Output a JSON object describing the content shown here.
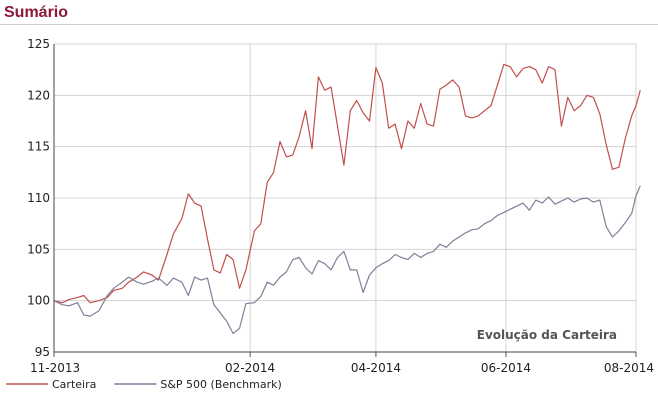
{
  "header": {
    "title": "Sumário"
  },
  "chart_data": {
    "type": "line",
    "title": "",
    "annotation": "Evolução da Carteira",
    "xlabel": "",
    "ylabel": "",
    "ylim": [
      95,
      125
    ],
    "yticks": [
      95,
      100,
      105,
      110,
      115,
      120,
      125
    ],
    "xlim": [
      "2013-11-01",
      "2014-08-01"
    ],
    "xticks": [
      {
        "date": "2013-11-01",
        "label": "11-2013"
      },
      {
        "date": "2014-02-01",
        "label": "02-2014"
      },
      {
        "date": "2014-04-01",
        "label": "04-2014"
      },
      {
        "date": "2014-06-01",
        "label": "06-2014"
      },
      {
        "date": "2014-08-01",
        "label": "08-2014"
      }
    ],
    "grid": true,
    "legend_position": "bottom-left",
    "series": [
      {
        "name": "Carteira",
        "color": "#c0504d",
        "points": [
          [
            "2013-11-01",
            100.0
          ],
          [
            "2013-11-05",
            99.8
          ],
          [
            "2013-11-08",
            100.1
          ],
          [
            "2013-11-12",
            100.3
          ],
          [
            "2013-11-15",
            100.5
          ],
          [
            "2013-11-18",
            99.8
          ],
          [
            "2013-11-22",
            100.0
          ],
          [
            "2013-11-26",
            100.3
          ],
          [
            "2013-11-29",
            101.0
          ],
          [
            "2013-12-03",
            101.2
          ],
          [
            "2013-12-06",
            101.8
          ],
          [
            "2013-12-10",
            102.3
          ],
          [
            "2013-12-13",
            102.8
          ],
          [
            "2013-12-17",
            102.5
          ],
          [
            "2013-12-20",
            102.0
          ],
          [
            "2013-12-24",
            104.5
          ],
          [
            "2013-12-27",
            106.5
          ],
          [
            "2013-12-31",
            108.0
          ],
          [
            "2014-01-03",
            110.4
          ],
          [
            "2014-01-06",
            109.5
          ],
          [
            "2014-01-09",
            109.2
          ],
          [
            "2014-01-12",
            106.0
          ],
          [
            "2014-01-15",
            103.0
          ],
          [
            "2014-01-18",
            102.7
          ],
          [
            "2014-01-21",
            104.5
          ],
          [
            "2014-01-24",
            104.0
          ],
          [
            "2014-01-27",
            101.2
          ],
          [
            "2014-01-30",
            103.0
          ],
          [
            "2014-02-03",
            106.8
          ],
          [
            "2014-02-06",
            107.5
          ],
          [
            "2014-02-09",
            111.5
          ],
          [
            "2014-02-12",
            112.5
          ],
          [
            "2014-02-15",
            115.5
          ],
          [
            "2014-02-18",
            114.0
          ],
          [
            "2014-02-21",
            114.2
          ],
          [
            "2014-02-24",
            116.0
          ],
          [
            "2014-02-27",
            118.5
          ],
          [
            "2014-03-02",
            114.8
          ],
          [
            "2014-03-05",
            121.8
          ],
          [
            "2014-03-08",
            120.5
          ],
          [
            "2014-03-11",
            120.8
          ],
          [
            "2014-03-14",
            117.0
          ],
          [
            "2014-03-17",
            113.2
          ],
          [
            "2014-03-20",
            118.5
          ],
          [
            "2014-03-23",
            119.5
          ],
          [
            "2014-03-26",
            118.3
          ],
          [
            "2014-03-29",
            117.5
          ],
          [
            "2014-04-01",
            122.7
          ],
          [
            "2014-04-04",
            121.2
          ],
          [
            "2014-04-07",
            116.8
          ],
          [
            "2014-04-10",
            117.2
          ],
          [
            "2014-04-13",
            114.8
          ],
          [
            "2014-04-16",
            117.5
          ],
          [
            "2014-04-19",
            116.8
          ],
          [
            "2014-04-22",
            119.2
          ],
          [
            "2014-04-25",
            117.2
          ],
          [
            "2014-04-28",
            117.0
          ],
          [
            "2014-05-01",
            120.6
          ],
          [
            "2014-05-04",
            121.0
          ],
          [
            "2014-05-07",
            121.5
          ],
          [
            "2014-05-10",
            120.8
          ],
          [
            "2014-05-13",
            118.0
          ],
          [
            "2014-05-16",
            117.8
          ],
          [
            "2014-05-19",
            118.0
          ],
          [
            "2014-05-22",
            118.5
          ],
          [
            "2014-05-25",
            119.0
          ],
          [
            "2014-05-28",
            121.0
          ],
          [
            "2014-05-31",
            123.0
          ],
          [
            "2014-06-03",
            122.8
          ],
          [
            "2014-06-06",
            121.8
          ],
          [
            "2014-06-09",
            122.6
          ],
          [
            "2014-06-12",
            122.8
          ],
          [
            "2014-06-15",
            122.5
          ],
          [
            "2014-06-18",
            121.2
          ],
          [
            "2014-06-21",
            122.8
          ],
          [
            "2014-06-24",
            122.5
          ],
          [
            "2014-06-27",
            117.0
          ],
          [
            "2014-06-30",
            119.8
          ],
          [
            "2014-07-03",
            118.5
          ],
          [
            "2014-07-06",
            119.0
          ],
          [
            "2014-07-09",
            120.0
          ],
          [
            "2014-07-12",
            119.8
          ],
          [
            "2014-07-15",
            118.2
          ],
          [
            "2014-07-18",
            115.2
          ],
          [
            "2014-07-21",
            112.8
          ],
          [
            "2014-07-24",
            113.0
          ],
          [
            "2014-07-27",
            115.8
          ],
          [
            "2014-07-30",
            118.0
          ],
          [
            "2014-08-01",
            119.0
          ],
          [
            "2014-08-03",
            120.5
          ]
        ]
      },
      {
        "name": "S&P 500 (Benchmark)",
        "color": "#7f7f99",
        "points": [
          [
            "2013-11-01",
            100.0
          ],
          [
            "2013-11-05",
            99.6
          ],
          [
            "2013-11-08",
            99.5
          ],
          [
            "2013-11-12",
            99.8
          ],
          [
            "2013-11-15",
            98.6
          ],
          [
            "2013-11-18",
            98.5
          ],
          [
            "2013-11-22",
            99.0
          ],
          [
            "2013-11-26",
            100.5
          ],
          [
            "2013-11-29",
            101.2
          ],
          [
            "2013-12-03",
            101.8
          ],
          [
            "2013-12-06",
            102.3
          ],
          [
            "2013-12-10",
            101.8
          ],
          [
            "2013-12-13",
            101.6
          ],
          [
            "2013-12-17",
            101.9
          ],
          [
            "2013-12-20",
            102.2
          ],
          [
            "2013-12-24",
            101.5
          ],
          [
            "2013-12-27",
            102.2
          ],
          [
            "2013-12-31",
            101.8
          ],
          [
            "2014-01-03",
            100.5
          ],
          [
            "2014-01-06",
            102.3
          ],
          [
            "2014-01-09",
            102.0
          ],
          [
            "2014-01-12",
            102.2
          ],
          [
            "2014-01-15",
            99.6
          ],
          [
            "2014-01-18",
            98.8
          ],
          [
            "2014-01-21",
            98.0
          ],
          [
            "2014-01-24",
            96.8
          ],
          [
            "2014-01-27",
            97.3
          ],
          [
            "2014-01-30",
            99.7
          ],
          [
            "2014-02-03",
            99.8
          ],
          [
            "2014-02-06",
            100.4
          ],
          [
            "2014-02-09",
            101.8
          ],
          [
            "2014-02-12",
            101.5
          ],
          [
            "2014-02-15",
            102.3
          ],
          [
            "2014-02-18",
            102.8
          ],
          [
            "2014-02-21",
            104.0
          ],
          [
            "2014-02-24",
            104.2
          ],
          [
            "2014-02-27",
            103.2
          ],
          [
            "2014-03-02",
            102.6
          ],
          [
            "2014-03-05",
            103.9
          ],
          [
            "2014-03-08",
            103.6
          ],
          [
            "2014-03-11",
            103.0
          ],
          [
            "2014-03-14",
            104.2
          ],
          [
            "2014-03-17",
            104.8
          ],
          [
            "2014-03-20",
            103.0
          ],
          [
            "2014-03-23",
            103.0
          ],
          [
            "2014-03-26",
            100.8
          ],
          [
            "2014-03-29",
            102.5
          ],
          [
            "2014-04-01",
            103.2
          ],
          [
            "2014-04-04",
            103.6
          ],
          [
            "2014-04-07",
            103.9
          ],
          [
            "2014-04-10",
            104.5
          ],
          [
            "2014-04-13",
            104.2
          ],
          [
            "2014-04-16",
            104.0
          ],
          [
            "2014-04-19",
            104.6
          ],
          [
            "2014-04-22",
            104.2
          ],
          [
            "2014-04-25",
            104.6
          ],
          [
            "2014-04-28",
            104.8
          ],
          [
            "2014-05-01",
            105.5
          ],
          [
            "2014-05-04",
            105.2
          ],
          [
            "2014-05-07",
            105.8
          ],
          [
            "2014-05-10",
            106.2
          ],
          [
            "2014-05-13",
            106.6
          ],
          [
            "2014-05-16",
            106.9
          ],
          [
            "2014-05-19",
            107.0
          ],
          [
            "2014-05-22",
            107.5
          ],
          [
            "2014-05-25",
            107.8
          ],
          [
            "2014-05-28",
            108.3
          ],
          [
            "2014-05-31",
            108.6
          ],
          [
            "2014-06-03",
            108.9
          ],
          [
            "2014-06-06",
            109.2
          ],
          [
            "2014-06-09",
            109.5
          ],
          [
            "2014-06-12",
            108.8
          ],
          [
            "2014-06-15",
            109.8
          ],
          [
            "2014-06-18",
            109.5
          ],
          [
            "2014-06-21",
            110.1
          ],
          [
            "2014-06-24",
            109.4
          ],
          [
            "2014-06-27",
            109.7
          ],
          [
            "2014-06-30",
            110.0
          ],
          [
            "2014-07-03",
            109.6
          ],
          [
            "2014-07-06",
            109.9
          ],
          [
            "2014-07-09",
            110.0
          ],
          [
            "2014-07-12",
            109.6
          ],
          [
            "2014-07-15",
            109.8
          ],
          [
            "2014-07-18",
            107.2
          ],
          [
            "2014-07-21",
            106.2
          ],
          [
            "2014-07-24",
            106.8
          ],
          [
            "2014-07-27",
            107.6
          ],
          [
            "2014-07-30",
            108.5
          ],
          [
            "2014-08-01",
            110.2
          ],
          [
            "2014-08-03",
            111.2
          ]
        ]
      }
    ]
  }
}
